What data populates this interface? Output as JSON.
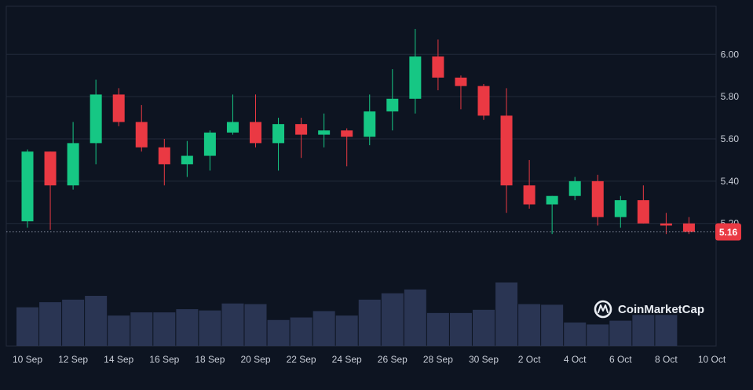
{
  "chart_data": {
    "type": "candlestick",
    "title": "",
    "xlabel": "",
    "ylabel": "",
    "ylim": [
      4.98,
      6.22
    ],
    "y_ticks": [
      "6.00",
      "5.80",
      "5.60",
      "5.40",
      "5.20"
    ],
    "x_ticks": [
      "10 Sep",
      "12 Sep",
      "14 Sep",
      "16 Sep",
      "18 Sep",
      "20 Sep",
      "22 Sep",
      "24 Sep",
      "26 Sep",
      "28 Sep",
      "30 Sep",
      "2 Oct",
      "4 Oct",
      "6 Oct",
      "8 Oct",
      "10 Oct"
    ],
    "grid": true,
    "current_price": "5.16",
    "colors": {
      "up": "#16c784",
      "down": "#ea3943",
      "volume": "#2a3553",
      "grid": "#222a3a",
      "background": "#0d1421",
      "price_tag": "#ea3943"
    },
    "candles": [
      {
        "date": "10 Sep",
        "open": 5.21,
        "high": 5.55,
        "low": 5.18,
        "close": 5.54
      },
      {
        "date": "11 Sep",
        "open": 5.54,
        "high": 5.54,
        "low": 5.17,
        "close": 5.38
      },
      {
        "date": "12 Sep",
        "open": 5.38,
        "high": 5.68,
        "low": 5.36,
        "close": 5.58
      },
      {
        "date": "13 Sep",
        "open": 5.58,
        "high": 5.88,
        "low": 5.48,
        "close": 5.81
      },
      {
        "date": "14 Sep",
        "open": 5.81,
        "high": 5.84,
        "low": 5.66,
        "close": 5.68
      },
      {
        "date": "15 Sep",
        "open": 5.68,
        "high": 5.76,
        "low": 5.54,
        "close": 5.56
      },
      {
        "date": "16 Sep",
        "open": 5.56,
        "high": 5.6,
        "low": 5.38,
        "close": 5.48
      },
      {
        "date": "17 Sep",
        "open": 5.48,
        "high": 5.59,
        "low": 5.42,
        "close": 5.52
      },
      {
        "date": "18 Sep",
        "open": 5.52,
        "high": 5.64,
        "low": 5.45,
        "close": 5.63
      },
      {
        "date": "19 Sep",
        "open": 5.63,
        "high": 5.81,
        "low": 5.62,
        "close": 5.68
      },
      {
        "date": "20 Sep",
        "open": 5.68,
        "high": 5.81,
        "low": 5.56,
        "close": 5.58
      },
      {
        "date": "21 Sep",
        "open": 5.58,
        "high": 5.7,
        "low": 5.45,
        "close": 5.67
      },
      {
        "date": "22 Sep",
        "open": 5.67,
        "high": 5.7,
        "low": 5.51,
        "close": 5.62
      },
      {
        "date": "23 Sep",
        "open": 5.62,
        "high": 5.72,
        "low": 5.56,
        "close": 5.64
      },
      {
        "date": "24 Sep",
        "open": 5.64,
        "high": 5.65,
        "low": 5.47,
        "close": 5.61
      },
      {
        "date": "25 Sep",
        "open": 5.61,
        "high": 5.81,
        "low": 5.57,
        "close": 5.73
      },
      {
        "date": "26 Sep",
        "open": 5.73,
        "high": 5.93,
        "low": 5.64,
        "close": 5.79
      },
      {
        "date": "27 Sep",
        "open": 5.79,
        "high": 6.12,
        "low": 5.72,
        "close": 5.99
      },
      {
        "date": "28 Sep",
        "open": 5.99,
        "high": 6.07,
        "low": 5.83,
        "close": 5.89
      },
      {
        "date": "29 Sep",
        "open": 5.89,
        "high": 5.9,
        "low": 5.74,
        "close": 5.85
      },
      {
        "date": "30 Sep",
        "open": 5.85,
        "high": 5.86,
        "low": 5.69,
        "close": 5.71
      },
      {
        "date": "1 Oct",
        "open": 5.71,
        "high": 5.84,
        "low": 5.25,
        "close": 5.38
      },
      {
        "date": "2 Oct",
        "open": 5.38,
        "high": 5.5,
        "low": 5.27,
        "close": 5.29
      },
      {
        "date": "3 Oct",
        "open": 5.29,
        "high": 5.33,
        "low": 5.15,
        "close": 5.33
      },
      {
        "date": "4 Oct",
        "open": 5.33,
        "high": 5.42,
        "low": 5.31,
        "close": 5.4
      },
      {
        "date": "5 Oct",
        "open": 5.4,
        "high": 5.43,
        "low": 5.19,
        "close": 5.23
      },
      {
        "date": "6 Oct",
        "open": 5.23,
        "high": 5.33,
        "low": 5.18,
        "close": 5.31
      },
      {
        "date": "7 Oct",
        "open": 5.31,
        "high": 5.38,
        "low": 5.2,
        "close": 5.2
      },
      {
        "date": "8 Oct",
        "open": 5.2,
        "high": 5.25,
        "low": 5.15,
        "close": 5.19
      },
      {
        "date": "9 Oct",
        "open": 5.2,
        "high": 5.23,
        "low": 5.15,
        "close": 5.16
      }
    ],
    "volume_relative": [
      0.61,
      0.69,
      0.73,
      0.79,
      0.48,
      0.53,
      0.53,
      0.58,
      0.56,
      0.67,
      0.66,
      0.41,
      0.45,
      0.55,
      0.48,
      0.73,
      0.83,
      0.89,
      0.52,
      0.52,
      0.57,
      1.0,
      0.66,
      0.65,
      0.37,
      0.34,
      0.4,
      0.49,
      0.49,
      0.0
    ]
  },
  "branding": {
    "name": "CoinMarketCap",
    "icon": "coinmarketcap-logo-icon"
  }
}
